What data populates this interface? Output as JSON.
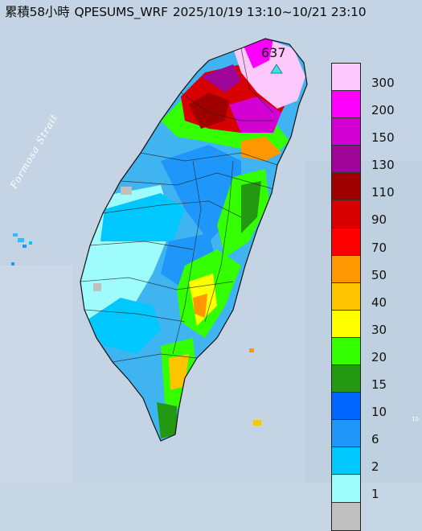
{
  "title": {
    "accumulation": "累積58小時",
    "product": "QPESUMS_WRF",
    "period": "2025/10/19 13:10~10/21 23:10"
  },
  "sea_label": "Formosa Strait",
  "max_marker": {
    "value": "637",
    "symbol": "triangle",
    "color": "#40e0e0"
  },
  "corner_note": "10",
  "legend": {
    "items": [
      {
        "label": "300",
        "color": "#fdc9fd"
      },
      {
        "label": "200",
        "color": "#fd00fd"
      },
      {
        "label": "150",
        "color": "#d200d2"
      },
      {
        "label": "130",
        "color": "#9e0598"
      },
      {
        "label": "110",
        "color": "#a00000"
      },
      {
        "label": "90",
        "color": "#d80000"
      },
      {
        "label": "70",
        "color": "#ff0000"
      },
      {
        "label": "50",
        "color": "#ff9800"
      },
      {
        "label": "40",
        "color": "#ffc400"
      },
      {
        "label": "30",
        "color": "#ffff00"
      },
      {
        "label": "20",
        "color": "#33ff00"
      },
      {
        "label": "15",
        "color": "#229911"
      },
      {
        "label": "10",
        "color": "#0066ff"
      },
      {
        "label": "6",
        "color": "#1e96fa"
      },
      {
        "label": "2",
        "color": "#00c8ff"
      },
      {
        "label": "1",
        "color": "#9efcfc"
      },
      {
        "label": "",
        "color": "#c0c0c0"
      }
    ]
  }
}
